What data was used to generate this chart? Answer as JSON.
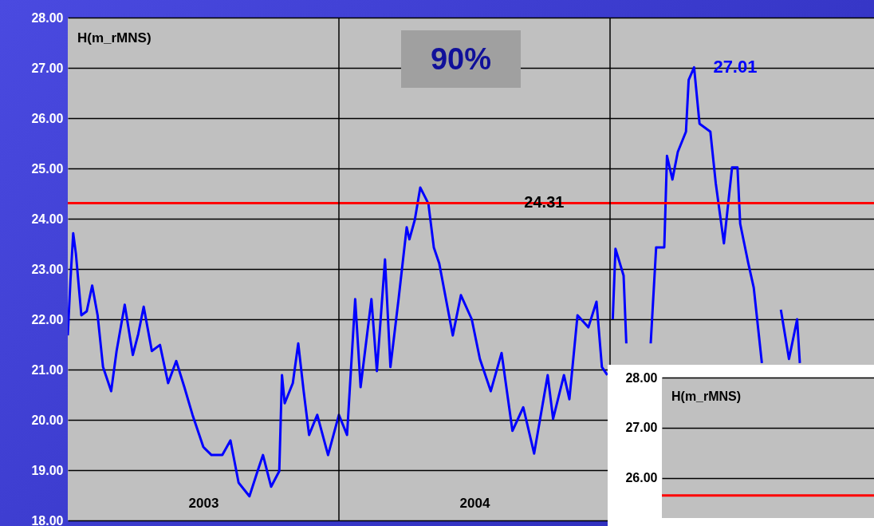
{
  "chart_data": [
    {
      "type": "line",
      "color": "#0000ff",
      "grid": "y",
      "tick_labels": "xy",
      "xlim": [
        2003,
        2006
      ],
      "xticks": [
        {
          "value": 2003.5,
          "label": "2003"
        },
        {
          "value": 2004.5,
          "label": "2004"
        }
      ],
      "ylim": [
        18,
        28
      ],
      "yticks": [
        {
          "value": 18,
          "label": "18.00"
        },
        {
          "value": 19,
          "label": "19.00"
        },
        {
          "value": 20,
          "label": "20.00"
        },
        {
          "value": 21,
          "label": "21.00"
        },
        {
          "value": 22,
          "label": "22.00"
        },
        {
          "value": 23,
          "label": "23.00"
        },
        {
          "value": 24,
          "label": "24.00"
        },
        {
          "value": 25,
          "label": "25.00"
        },
        {
          "value": 26,
          "label": "26.00"
        },
        {
          "value": 27,
          "label": "27.00"
        },
        {
          "value": 28,
          "label": "28.00"
        }
      ],
      "x": [
        2003.0,
        2003.01,
        2003.02,
        2003.03,
        2003.05,
        2003.07,
        2003.09,
        2003.11,
        2003.13,
        2003.16,
        2003.18,
        2003.21,
        2003.24,
        2003.26,
        2003.28,
        2003.31,
        2003.34,
        2003.37,
        2003.4,
        2003.43,
        2003.46,
        2003.5,
        2003.53,
        2003.57,
        2003.6,
        2003.63,
        2003.67,
        2003.7,
        2003.72,
        2003.75,
        2003.78,
        2003.79,
        2003.8,
        2003.83,
        2003.85,
        2003.87,
        2003.89,
        2003.92,
        2003.96,
        2004.0,
        2004.03,
        2004.06,
        2004.08,
        2004.12,
        2004.14,
        2004.17,
        2004.19,
        2004.22,
        2004.25,
        2004.26,
        2004.28,
        2004.3,
        2004.33,
        2004.35,
        2004.37,
        2004.42,
        2004.45,
        2004.49,
        2004.52,
        2004.56,
        2004.6,
        2004.64,
        2004.68,
        2004.72,
        2004.77,
        2004.79,
        2004.83,
        2004.85,
        2004.88,
        2004.92,
        2004.95,
        2004.97,
        2004.99,
        2005.0,
        2005.01,
        2005.02,
        2005.05,
        2005.06,
        2005.1,
        2005.15,
        2005.17,
        2005.2,
        2005.21,
        2005.23,
        2005.25,
        2005.28,
        2005.29,
        2005.31,
        2005.33,
        2005.37,
        2005.39,
        2005.42,
        2005.45,
        2005.47,
        2005.48,
        2005.51,
        2005.53,
        2005.56,
        2005.6,
        2005.63,
        2005.66,
        2005.69,
        2005.7
      ],
      "values": [
        21.68,
        22.79,
        23.71,
        23.3,
        22.08,
        22.16,
        22.67,
        22.08,
        21.05,
        20.57,
        21.37,
        22.29,
        21.29,
        21.71,
        22.25,
        21.37,
        21.49,
        20.73,
        21.17,
        20.65,
        20.1,
        19.46,
        19.3,
        19.3,
        19.59,
        18.75,
        18.48,
        18.98,
        19.3,
        18.67,
        18.98,
        20.89,
        20.33,
        20.73,
        21.52,
        20.57,
        19.7,
        20.1,
        19.3,
        20.1,
        19.7,
        22.4,
        20.65,
        22.4,
        20.97,
        23.19,
        21.05,
        22.4,
        23.83,
        23.59,
        23.98,
        24.62,
        24.3,
        23.43,
        23.11,
        21.68,
        22.48,
        22.0,
        21.21,
        20.57,
        21.33,
        19.78,
        20.25,
        19.33,
        20.89,
        20.02,
        20.89,
        20.41,
        22.08,
        21.84,
        22.35,
        21.05,
        20.89,
        null,
        22.0,
        23.4,
        22.87,
        21.52,
        null,
        21.52,
        23.43,
        23.43,
        25.25,
        24.78,
        25.33,
        25.73,
        26.76,
        27.01,
        25.89,
        25.73,
        24.7,
        23.51,
        25.02,
        25.02,
        23.9,
        23.11,
        22.63,
        21.13,
        null,
        22.19,
        21.21,
        22.0,
        21.13
      ],
      "ref_lines": [
        {
          "axis": "y",
          "value": 24.31,
          "label": "24.31",
          "color": "#ff0000"
        },
        {
          "axis": "x",
          "value": 2004,
          "color": "#000000"
        },
        {
          "axis": "x",
          "value": 2005,
          "color": "#000000"
        }
      ],
      "annotations": [
        "H(m_rMNS)",
        "90%",
        {
          "text": "27.01",
          "x": 2005.31,
          "y": 27.01
        }
      ]
    },
    {
      "type": "line",
      "grid": "y",
      "tick_labels": "y",
      "color": "#0000ff",
      "categories": [
        null,
        null
      ],
      "values": [
        null,
        null
      ],
      "ylim": [
        25.2,
        28
      ],
      "yticks": [
        {
          "value": 26,
          "label": "26.00"
        },
        {
          "value": 27,
          "label": "27.00"
        },
        {
          "value": 28,
          "label": "28.00"
        }
      ],
      "ref_lines": [
        {
          "axis": "y",
          "value": 25.65,
          "color": "#ff0000"
        }
      ],
      "annotations": [
        "H(m_rMNS)"
      ]
    }
  ]
}
